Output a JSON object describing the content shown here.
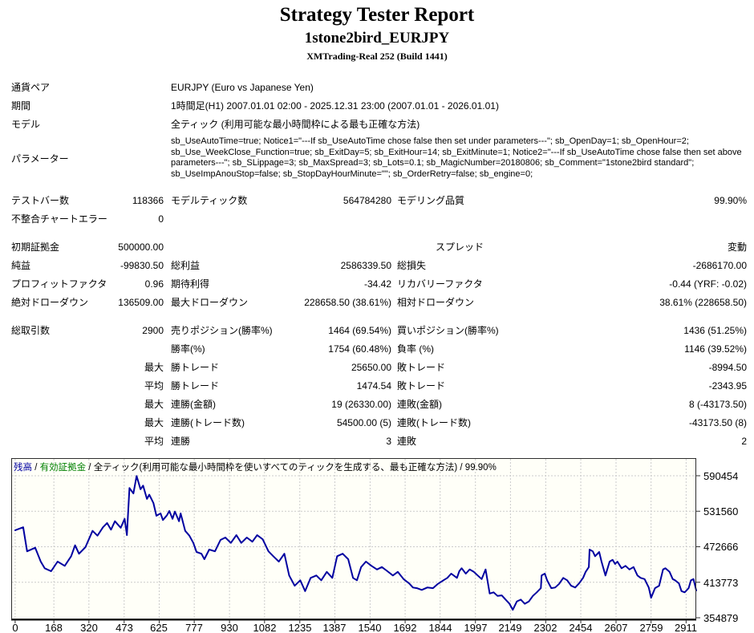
{
  "header": {
    "title": "Strategy Tester Report",
    "subtitle": "1stone2bird_EURJPY",
    "server": "XMTrading-Real 252 (Build 1441)"
  },
  "info_rows": [
    {
      "label": "通貨ペア",
      "value": "EURJPY (Euro vs Japanese Yen)"
    },
    {
      "label": "期間",
      "value": "1時間足(H1) 2007.01.01 02:00 - 2025.12.31 23:00 (2007.01.01 - 2026.01.01)"
    },
    {
      "label": "モデル",
      "value": "全ティック (利用可能な最小時間枠による最も正確な方法)"
    },
    {
      "label": "パラメーター",
      "value": "sb_UseAutoTime=true; Notice1=\"---If sb_UseAutoTime chose false then set under parameters---\"; sb_OpenDay=1; sb_OpenHour=2; sb_Use_WeekClose_Function=true; sb_ExitDay=5; sb_ExitHour=14; sb_ExitMinute=1; Notice2=\"---If sb_UseAutoTime chose false then set above parameters---\"; sb_SLippage=3; sb_MaxSpread=3; sb_Lots=0.1; sb_MagicNumber=20180806; sb_Comment=\"1stone2bird standard\"; sb_UseImpAnouStop=false; sb_StopDayHourMinute=\"\"; sb_OrderRetry=false; sb_engine=0;",
      "params": true
    }
  ],
  "stat_rows": [
    {
      "cells": [
        "テストバー数",
        "118366",
        "モデルティック数",
        "564784280",
        "モデリング品質",
        "99.90%"
      ],
      "gap": 10
    },
    {
      "cells": [
        "不整合チャートエラー",
        "0",
        "",
        "",
        "",
        ""
      ]
    },
    {
      "cells": [
        "初期証拠金",
        "500000.00",
        "",
        "",
        "スプレッド",
        "変動"
      ],
      "gap": 12,
      "indent_label3": true
    },
    {
      "cells": [
        "純益",
        "-99830.50",
        "総利益",
        "2586339.50",
        "総損失",
        "-2686170.00"
      ]
    },
    {
      "cells": [
        "プロフィットファクタ",
        "0.96",
        "期待利得",
        "-34.42",
        "リカバリーファクタ",
        "-0.44 (YRF: -0.02)"
      ]
    },
    {
      "cells": [
        "絶対ドローダウン",
        "136509.00",
        "最大ドローダウン",
        "228658.50 (38.61%)",
        "相対ドローダウン",
        "38.61% (228658.50)"
      ]
    },
    {
      "cells": [
        "総取引数",
        "2900",
        "売りポジション(勝率%)",
        "1464 (69.54%)",
        "買いポジション(勝率%)",
        "1436 (51.25%)"
      ],
      "gap": 12
    },
    {
      "cells": [
        "",
        "",
        "勝率(%)",
        "1754 (60.48%)",
        "負率 (%)",
        "1146 (39.52%)"
      ]
    },
    {
      "cells": [
        "",
        "最大",
        "勝トレード",
        "25650.00",
        "敗トレード",
        "-8994.50"
      ]
    },
    {
      "cells": [
        "",
        "平均",
        "勝トレード",
        "1474.54",
        "敗トレード",
        "-2343.95"
      ]
    },
    {
      "cells": [
        "",
        "最大",
        "連勝(金額)",
        "19 (26330.00)",
        "連敗(金額)",
        "8 (-43173.50)"
      ]
    },
    {
      "cells": [
        "",
        "最大",
        "連勝(トレード数)",
        "54500.00 (5)",
        "連敗(トレード数)",
        "-43173.50 (8)"
      ]
    },
    {
      "cells": [
        "",
        "平均",
        "連勝",
        "3",
        "連敗",
        "2"
      ]
    }
  ],
  "chart_data": {
    "type": "line",
    "legend": [
      {
        "text": "残高",
        "color": "#0000a0"
      },
      {
        "text": "有効証拠金",
        "color": "#008000"
      },
      {
        "text": "全ティック(利用可能な最小時間枠を使いすべてのティックを生成する、最も正確な方法)",
        "color": "#000000"
      },
      {
        "text": "99.90%",
        "color": "#000000"
      }
    ],
    "legend_separator": " / ",
    "x_ticks": [
      0,
      168,
      320,
      473,
      625,
      777,
      930,
      1082,
      1235,
      1387,
      1540,
      1692,
      1844,
      1997,
      2149,
      2302,
      2454,
      2607,
      2759,
      2911
    ],
    "y_ticks": [
      590454,
      531560,
      472666,
      413773,
      354879
    ],
    "x_domain": [
      -17,
      2955
    ],
    "y_domain": [
      352200,
      619700
    ],
    "grid": true,
    "grid_color": "#cbcbcb",
    "xlabel": "",
    "ylabel": "",
    "series": [
      {
        "name": "残高",
        "color": "#0000a0",
        "points": [
          [
            0,
            500000
          ],
          [
            35,
            505000
          ],
          [
            52,
            465000
          ],
          [
            87,
            471000
          ],
          [
            111,
            448000
          ],
          [
            128,
            437000
          ],
          [
            156,
            432000
          ],
          [
            184,
            448000
          ],
          [
            215,
            441000
          ],
          [
            243,
            457000
          ],
          [
            260,
            475000
          ],
          [
            277,
            461000
          ],
          [
            305,
            472000
          ],
          [
            336,
            499000
          ],
          [
            357,
            491000
          ],
          [
            381,
            505000
          ],
          [
            399,
            512000
          ],
          [
            416,
            501000
          ],
          [
            433,
            515000
          ],
          [
            458,
            504000
          ],
          [
            475,
            519000
          ],
          [
            485,
            492000
          ],
          [
            496,
            570000
          ],
          [
            513,
            561000
          ],
          [
            527,
            590000
          ],
          [
            544,
            568000
          ],
          [
            555,
            574000
          ],
          [
            572,
            552000
          ],
          [
            582,
            559000
          ],
          [
            600,
            545000
          ],
          [
            613,
            524000
          ],
          [
            631,
            528000
          ],
          [
            641,
            517000
          ],
          [
            659,
            525000
          ],
          [
            669,
            532000
          ],
          [
            683,
            519000
          ],
          [
            693,
            531000
          ],
          [
            711,
            515000
          ],
          [
            718,
            528000
          ],
          [
            738,
            499000
          ],
          [
            756,
            491000
          ],
          [
            773,
            479000
          ],
          [
            787,
            464000
          ],
          [
            808,
            461000
          ],
          [
            821,
            452000
          ],
          [
            842,
            468000
          ],
          [
            867,
            465000
          ],
          [
            891,
            484000
          ],
          [
            912,
            488000
          ],
          [
            936,
            479000
          ],
          [
            960,
            492000
          ],
          [
            981,
            479000
          ],
          [
            1005,
            488000
          ],
          [
            1029,
            481000
          ],
          [
            1050,
            492000
          ],
          [
            1074,
            485000
          ],
          [
            1099,
            465000
          ],
          [
            1120,
            457000
          ],
          [
            1144,
            448000
          ],
          [
            1168,
            461000
          ],
          [
            1189,
            425000
          ],
          [
            1213,
            408000
          ],
          [
            1237,
            417000
          ],
          [
            1258,
            399000
          ],
          [
            1282,
            421000
          ],
          [
            1307,
            425000
          ],
          [
            1328,
            417000
          ],
          [
            1352,
            431000
          ],
          [
            1376,
            421000
          ],
          [
            1397,
            457000
          ],
          [
            1421,
            461000
          ],
          [
            1445,
            452000
          ],
          [
            1466,
            421000
          ],
          [
            1483,
            417000
          ],
          [
            1501,
            439000
          ],
          [
            1522,
            448000
          ],
          [
            1546,
            441000
          ],
          [
            1570,
            435000
          ],
          [
            1591,
            439000
          ],
          [
            1615,
            432000
          ],
          [
            1639,
            425000
          ],
          [
            1660,
            431000
          ],
          [
            1685,
            419000
          ],
          [
            1709,
            412000
          ],
          [
            1726,
            405000
          ],
          [
            1743,
            404000
          ],
          [
            1764,
            401000
          ],
          [
            1788,
            405000
          ],
          [
            1813,
            404000
          ],
          [
            1834,
            411000
          ],
          [
            1858,
            417000
          ],
          [
            1875,
            421000
          ],
          [
            1892,
            428000
          ],
          [
            1917,
            421000
          ],
          [
            1927,
            432000
          ],
          [
            1937,
            437000
          ],
          [
            1955,
            428000
          ],
          [
            1972,
            435000
          ],
          [
            1990,
            431000
          ],
          [
            2007,
            425000
          ],
          [
            2024,
            419000
          ],
          [
            2041,
            435000
          ],
          [
            2059,
            395000
          ],
          [
            2076,
            397000
          ],
          [
            2093,
            391000
          ],
          [
            2111,
            392000
          ],
          [
            2128,
            385000
          ],
          [
            2145,
            378000
          ],
          [
            2159,
            368000
          ],
          [
            2177,
            382000
          ],
          [
            2194,
            385000
          ],
          [
            2211,
            378000
          ],
          [
            2229,
            382000
          ],
          [
            2246,
            391000
          ],
          [
            2263,
            397000
          ],
          [
            2281,
            404000
          ],
          [
            2284,
            425000
          ],
          [
            2298,
            428000
          ],
          [
            2308,
            417000
          ],
          [
            2326,
            404000
          ],
          [
            2343,
            405000
          ],
          [
            2360,
            411000
          ],
          [
            2378,
            421000
          ],
          [
            2395,
            417000
          ],
          [
            2412,
            408000
          ],
          [
            2430,
            405000
          ],
          [
            2447,
            412000
          ],
          [
            2464,
            421000
          ],
          [
            2475,
            431000
          ],
          [
            2489,
            439000
          ],
          [
            2492,
            468000
          ],
          [
            2506,
            465000
          ],
          [
            2516,
            457000
          ],
          [
            2534,
            464000
          ],
          [
            2544,
            448000
          ],
          [
            2561,
            425000
          ],
          [
            2579,
            448000
          ],
          [
            2592,
            451000
          ],
          [
            2603,
            444000
          ],
          [
            2613,
            448000
          ],
          [
            2631,
            437000
          ],
          [
            2648,
            441000
          ],
          [
            2665,
            435000
          ],
          [
            2683,
            439000
          ],
          [
            2700,
            425000
          ],
          [
            2714,
            421000
          ],
          [
            2731,
            419000
          ],
          [
            2749,
            405000
          ],
          [
            2759,
            388000
          ],
          [
            2776,
            404000
          ],
          [
            2794,
            408000
          ],
          [
            2811,
            435000
          ],
          [
            2821,
            437000
          ],
          [
            2839,
            431000
          ],
          [
            2853,
            419000
          ],
          [
            2863,
            417000
          ],
          [
            2880,
            412000
          ],
          [
            2891,
            399000
          ],
          [
            2905,
            397000
          ],
          [
            2922,
            404000
          ],
          [
            2932,
            417000
          ],
          [
            2943,
            419000
          ],
          [
            2955,
            400170
          ]
        ]
      }
    ],
    "plot_background": "#fffff8",
    "border_color": "#2e2e2e"
  }
}
